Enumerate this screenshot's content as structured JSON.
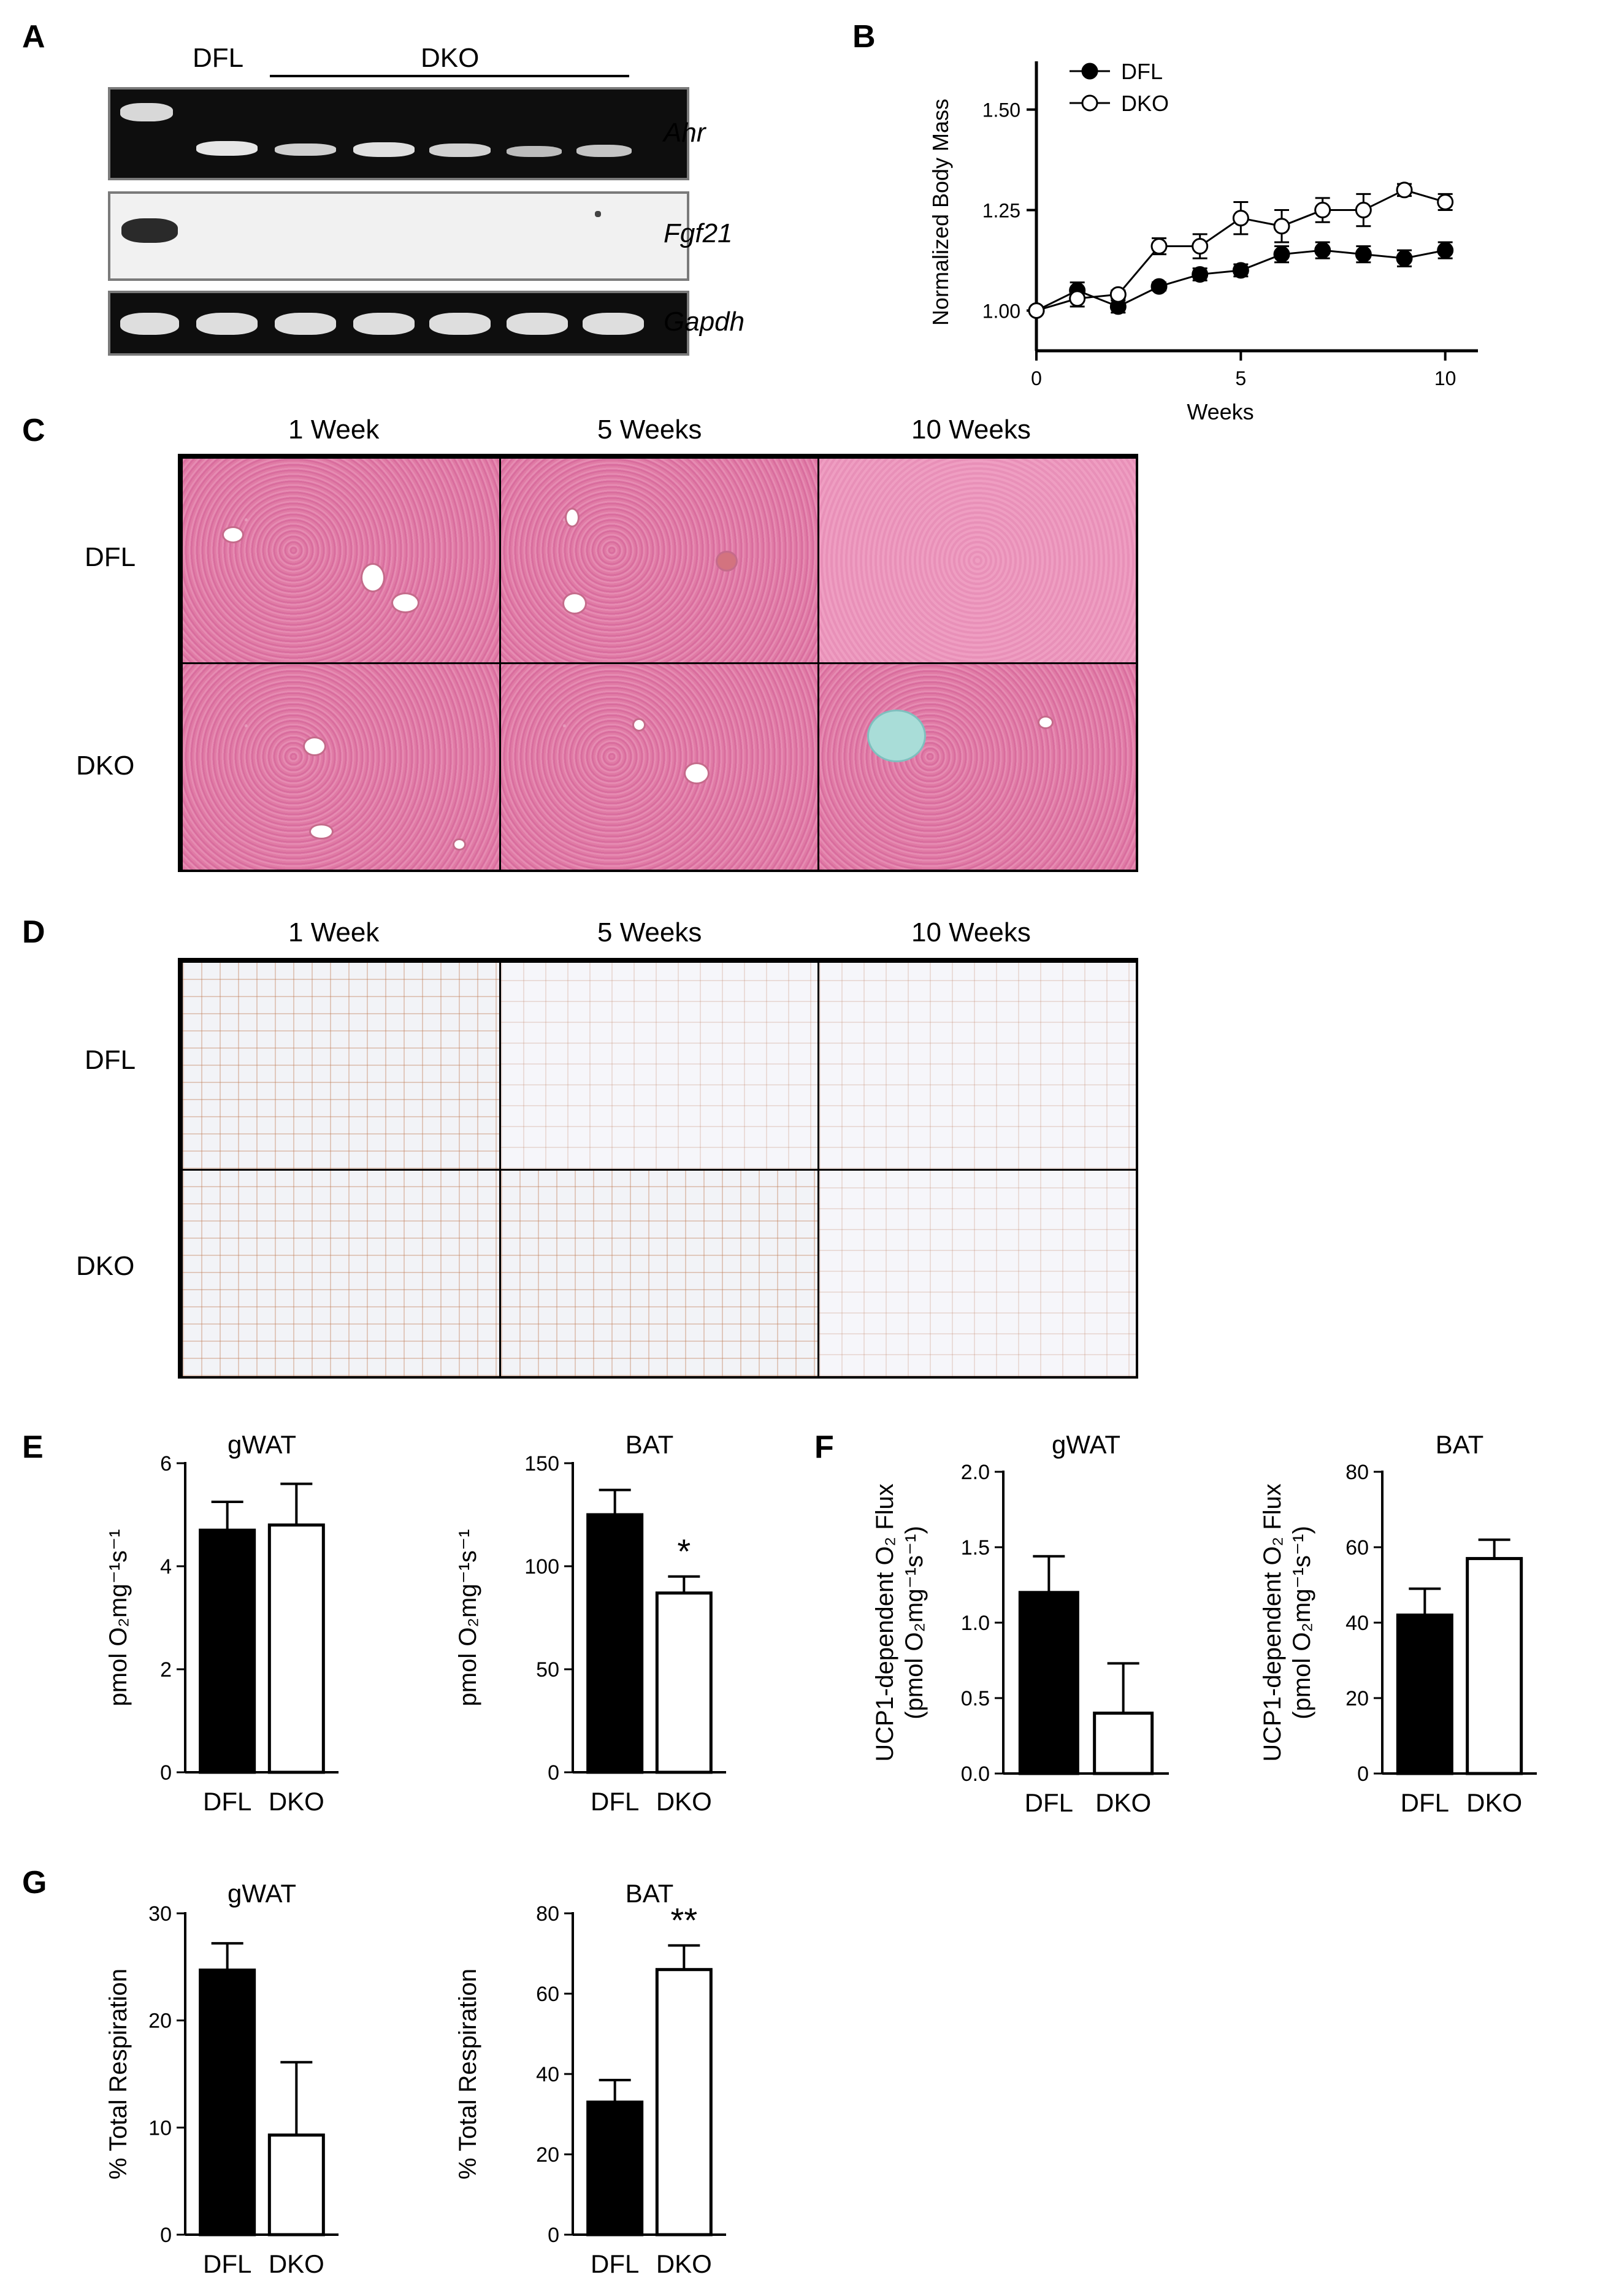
{
  "panels": {
    "a": "A",
    "b": "B",
    "c": "C",
    "d": "D",
    "e": "E",
    "f": "F",
    "g": "G"
  },
  "panelA": {
    "lane_dfl": "DFL",
    "lane_dko": "DKO",
    "genes": [
      "Ahr",
      "Fgf21",
      "Gapdh"
    ]
  },
  "panelC": {
    "columns": [
      "1 Week",
      "5 Weeks",
      "10 Weeks"
    ],
    "rows": [
      "DFL",
      "DKO"
    ]
  },
  "panelD": {
    "columns": [
      "1 Week",
      "5 Weeks",
      "10 Weeks"
    ],
    "rows": [
      "DFL",
      "DKO"
    ]
  },
  "colors": {
    "filled": "#000000",
    "open": "#ffffff",
    "he_stain": "#e07ba5",
    "ihc_bg": "#f2f3f7"
  },
  "chart_data": [
    {
      "id": "B",
      "type": "line",
      "xlabel": "Weeks",
      "ylabel": "Normalized Body Mass",
      "xlim": [
        0,
        10.8
      ],
      "ylim": [
        0.9,
        1.62
      ],
      "xticks": [
        0,
        5,
        10
      ],
      "yticks": [
        1.0,
        1.25,
        1.5
      ],
      "ytick_labels": [
        "1.00",
        "1.25",
        "1.50"
      ],
      "legend": "top-left",
      "x": [
        0,
        1,
        2,
        3,
        4,
        5,
        6,
        7,
        8,
        9,
        10
      ],
      "series": [
        {
          "name": "DFL",
          "marker": "filled",
          "values": [
            1.0,
            1.05,
            1.01,
            1.06,
            1.09,
            1.1,
            1.14,
            1.15,
            1.14,
            1.13,
            1.15
          ],
          "errors": [
            0.005,
            0.02,
            0.015,
            0.01,
            0.015,
            0.015,
            0.02,
            0.02,
            0.02,
            0.02,
            0.02
          ]
        },
        {
          "name": "DKO",
          "marker": "open",
          "values": [
            1.0,
            1.03,
            1.04,
            1.16,
            1.16,
            1.23,
            1.21,
            1.25,
            1.25,
            1.3,
            1.27
          ],
          "errors": [
            0.005,
            0.02,
            0.01,
            0.02,
            0.03,
            0.04,
            0.04,
            0.03,
            0.04,
            0.015,
            0.02
          ]
        }
      ]
    },
    {
      "id": "E-gWAT",
      "type": "bar",
      "title": "gWAT",
      "ylabel": "pmol O₂mg⁻¹s⁻¹",
      "categories": [
        "DFL",
        "DKO"
      ],
      "values": [
        4.7,
        4.8
      ],
      "errors": [
        0.55,
        0.8
      ],
      "ylim": [
        0,
        6
      ],
      "yticks": [
        0,
        2,
        4,
        6
      ],
      "ytick_labels": [
        "0",
        "2",
        "4",
        "6"
      ],
      "annotations": [
        "",
        ""
      ]
    },
    {
      "id": "E-BAT",
      "type": "bar",
      "title": "BAT",
      "ylabel": "pmol O₂mg⁻¹s⁻¹",
      "categories": [
        "DFL",
        "DKO"
      ],
      "values": [
        125,
        87
      ],
      "errors": [
        12,
        8
      ],
      "ylim": [
        0,
        150
      ],
      "yticks": [
        0,
        50,
        100,
        150
      ],
      "ytick_labels": [
        "0",
        "50",
        "100",
        "150"
      ],
      "annotations": [
        "",
        "*"
      ]
    },
    {
      "id": "F-gWAT",
      "type": "bar",
      "title": "gWAT",
      "ylabel": "UCP1-dependent O₂ Flux",
      "ylabel2": "(pmol O₂mg⁻¹s⁻¹)",
      "categories": [
        "DFL",
        "DKO"
      ],
      "values": [
        1.2,
        0.4
      ],
      "errors": [
        0.24,
        0.33
      ],
      "ylim": [
        0,
        2.0
      ],
      "yticks": [
        0,
        0.5,
        1.0,
        1.5,
        2.0
      ],
      "ytick_labels": [
        "0.0",
        "0.5",
        "1.0",
        "1.5",
        "2.0"
      ],
      "annotations": [
        "",
        ""
      ]
    },
    {
      "id": "F-BAT",
      "type": "bar",
      "title": "BAT",
      "ylabel": "UCP1-dependent O₂ Flux",
      "ylabel2": "(pmol O₂mg⁻¹s⁻¹)",
      "categories": [
        "DFL",
        "DKO"
      ],
      "values": [
        42,
        57
      ],
      "errors": [
        7,
        5
      ],
      "ylim": [
        0,
        80
      ],
      "yticks": [
        0,
        20,
        40,
        60,
        80
      ],
      "ytick_labels": [
        "0",
        "20",
        "40",
        "60",
        "80"
      ],
      "annotations": [
        "",
        ""
      ]
    },
    {
      "id": "G-gWAT",
      "type": "bar",
      "title": "gWAT",
      "ylabel": "% Total Respiration",
      "categories": [
        "DFL",
        "DKO"
      ],
      "values": [
        24.7,
        9.3
      ],
      "errors": [
        2.5,
        6.8
      ],
      "ylim": [
        0,
        30
      ],
      "yticks": [
        0,
        10,
        20,
        30
      ],
      "ytick_labels": [
        "0",
        "10",
        "20",
        "30"
      ],
      "annotations": [
        "",
        ""
      ]
    },
    {
      "id": "G-BAT",
      "type": "bar",
      "title": "BAT",
      "ylabel": "% Total Respiration",
      "categories": [
        "DFL",
        "DKO"
      ],
      "values": [
        33,
        66
      ],
      "errors": [
        5.5,
        6
      ],
      "ylim": [
        0,
        80
      ],
      "yticks": [
        0,
        20,
        40,
        60,
        80
      ],
      "ytick_labels": [
        "0",
        "20",
        "40",
        "60",
        "80"
      ],
      "annotations": [
        "",
        "**"
      ]
    }
  ]
}
